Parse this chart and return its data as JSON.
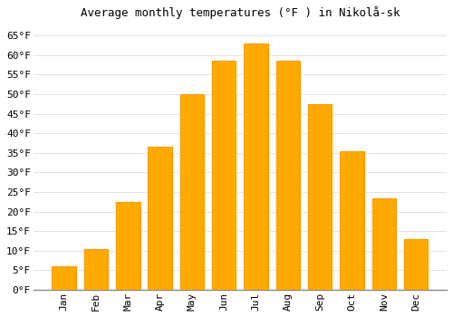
{
  "title": "Average monthly temperatures (°F ) in Nikolå­sk",
  "months": [
    "Jan",
    "Feb",
    "Mar",
    "Apr",
    "May",
    "Jun",
    "Jul",
    "Aug",
    "Sep",
    "Oct",
    "Nov",
    "Dec"
  ],
  "values": [
    6,
    10.5,
    22.5,
    36.5,
    50,
    58.5,
    63,
    58.5,
    47.5,
    35.5,
    23.5,
    13
  ],
  "bar_color": "#FFAA00",
  "bar_edge_color": "#FF9900",
  "background_color": "#FFFFFF",
  "grid_color": "#DDDDDD",
  "ylim": [
    0,
    68
  ],
  "yticks": [
    0,
    5,
    10,
    15,
    20,
    25,
    30,
    35,
    40,
    45,
    50,
    55,
    60,
    65
  ],
  "ytick_labels": [
    "0°F",
    "5°F",
    "10°F",
    "15°F",
    "20°F",
    "25°F",
    "30°F",
    "35°F",
    "40°F",
    "45°F",
    "50°F",
    "55°F",
    "60°F",
    "65°F"
  ],
  "title_fontsize": 9,
  "tick_fontsize": 8,
  "font_family": "monospace",
  "bar_width": 0.75
}
